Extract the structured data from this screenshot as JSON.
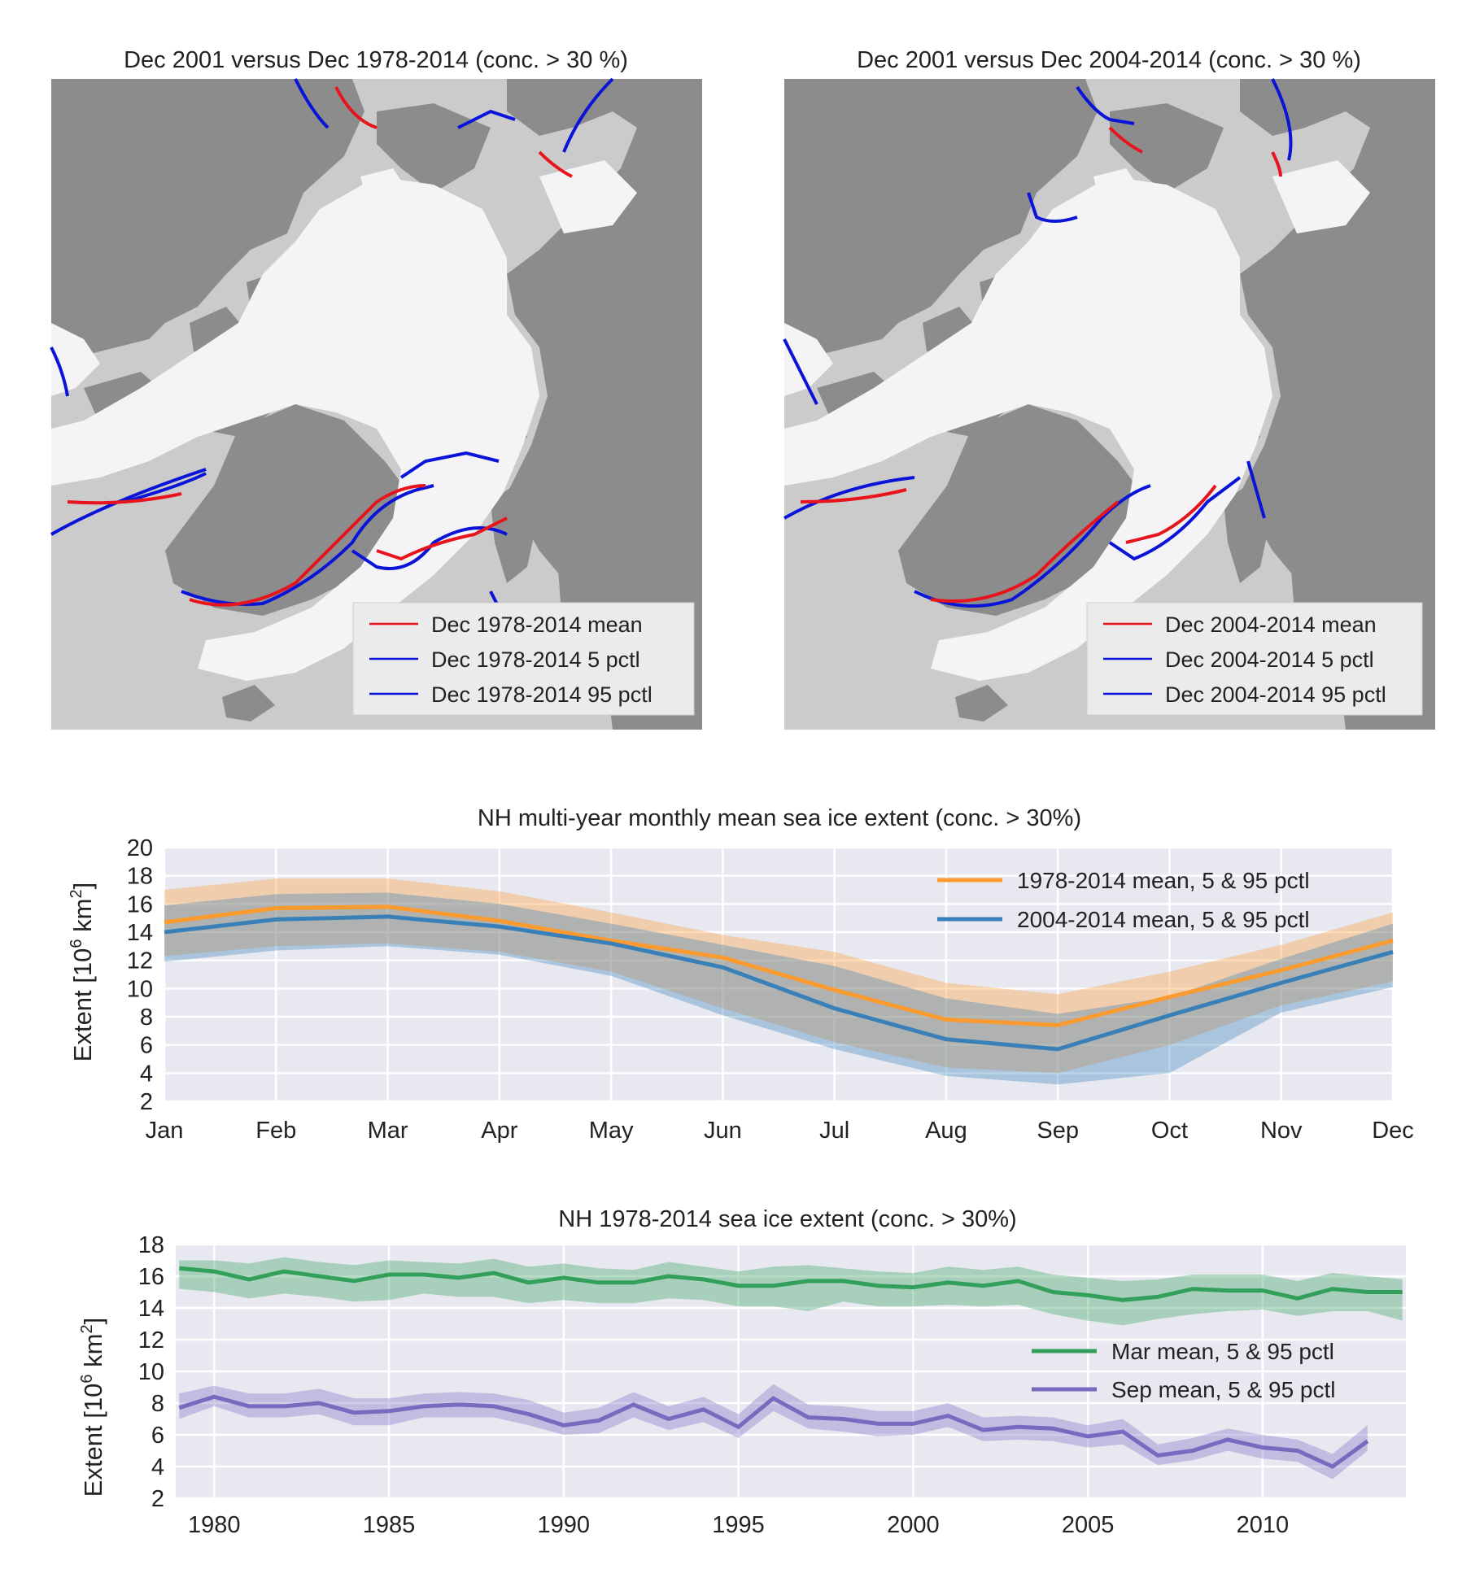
{
  "maps": [
    {
      "title": "Dec 2001 versus Dec 1978-2014 (conc. > 30 %)",
      "legend": [
        "Dec 1978-2014 mean",
        "Dec 1978-2014 5 pctl",
        "Dec 1978-2014 95 pctl"
      ]
    },
    {
      "title": "Dec 2001 versus Dec 2004-2014 (conc. > 30 %)",
      "legend": [
        "Dec 2004-2014 mean",
        "Dec 2004-2014 5 pctl",
        "Dec 2004-2014 95 pctl"
      ]
    }
  ],
  "colors": {
    "land": "#8c8c8c",
    "ocean": "#cbcbcb",
    "ice": "#f4f4f6",
    "mean_line": "#e8141c",
    "pctl_line": "#0a14d8",
    "plot_bg": "#e8e8f1",
    "orange": "#fb9a2f",
    "blue": "#3a80b8",
    "green": "#32a05a",
    "purple": "#7a6abf"
  },
  "chart_data": [
    {
      "type": "line",
      "title": "NH multi-year monthly mean sea ice extent (conc. > 30%)",
      "ylabel": "Extent [10⁶ km²]",
      "ylabel_main": "Extent",
      "ylabel_pre": "[10",
      "ylabel_exp1": "6",
      "ylabel_mid": "km",
      "ylabel_exp2": "2",
      "ylabel_post": "]",
      "categories": [
        "Jan",
        "Feb",
        "Mar",
        "Apr",
        "May",
        "Jun",
        "Jul",
        "Aug",
        "Sep",
        "Oct",
        "Nov",
        "Dec"
      ],
      "ylim": [
        2,
        20
      ],
      "yticks": [
        2,
        4,
        6,
        8,
        10,
        12,
        14,
        16,
        18,
        20
      ],
      "grid": true,
      "legend_position": "top-right",
      "series": [
        {
          "name": "1978-2014 mean, 5 & 95 pctl",
          "color": "#fb9a2f",
          "mean": [
            14.7,
            15.7,
            15.8,
            14.8,
            13.4,
            12.2,
            9.9,
            7.8,
            7.4,
            9.4,
            11.3,
            13.4
          ],
          "p5": [
            12.3,
            13.0,
            13.2,
            12.6,
            11.2,
            8.6,
            6.2,
            4.4,
            4.0,
            6.0,
            8.8,
            10.5
          ],
          "p95": [
            17.0,
            17.8,
            17.8,
            16.9,
            15.4,
            13.8,
            12.6,
            10.4,
            9.6,
            11.2,
            13.1,
            15.4
          ]
        },
        {
          "name": "2004-2014 mean, 5 & 95 pctl",
          "color": "#3a80b8",
          "mean": [
            14.0,
            14.9,
            15.1,
            14.4,
            13.2,
            11.5,
            8.6,
            6.4,
            5.7,
            8.1,
            10.4,
            12.6
          ],
          "p5": [
            11.9,
            12.7,
            13.0,
            12.4,
            10.9,
            8.1,
            5.7,
            3.8,
            3.2,
            4.0,
            8.3,
            10.1
          ],
          "p95": [
            15.9,
            16.7,
            16.8,
            16.0,
            14.6,
            13.1,
            11.6,
            9.3,
            8.2,
            9.4,
            12.1,
            14.6
          ]
        }
      ]
    },
    {
      "type": "line",
      "title": "NH 1978-2014 sea ice extent (conc. > 30%)",
      "ylabel": "Extent [10⁶ km²]",
      "ylabel_main": "Extent",
      "ylabel_pre": "[10",
      "ylabel_exp1": "6",
      "ylabel_mid": "km",
      "ylabel_exp2": "2",
      "ylabel_post": "]",
      "xlim": [
        1978.9,
        2014.1
      ],
      "xticks": [
        1980,
        1985,
        1990,
        1995,
        2000,
        2005,
        2010
      ],
      "ylim": [
        2,
        18
      ],
      "yticks": [
        2,
        4,
        6,
        8,
        10,
        12,
        14,
        16,
        18
      ],
      "grid": true,
      "legend_position": "center-right",
      "x": [
        1979,
        1980,
        1981,
        1982,
        1983,
        1984,
        1985,
        1986,
        1987,
        1988,
        1989,
        1990,
        1991,
        1992,
        1993,
        1994,
        1995,
        1996,
        1997,
        1998,
        1999,
        2000,
        2001,
        2002,
        2003,
        2004,
        2005,
        2006,
        2007,
        2008,
        2009,
        2010,
        2011,
        2012,
        2013,
        2014
      ],
      "series": [
        {
          "name": "Mar mean, 5 & 95 pctl",
          "color": "#32a05a",
          "mean": [
            16.5,
            16.3,
            15.8,
            16.3,
            16.0,
            15.7,
            16.1,
            16.1,
            15.9,
            16.2,
            15.6,
            15.9,
            15.6,
            15.6,
            16.0,
            15.8,
            15.4,
            15.4,
            15.7,
            15.7,
            15.4,
            15.3,
            15.6,
            15.4,
            15.7,
            15.0,
            14.8,
            14.5,
            14.7,
            15.2,
            15.1,
            15.1,
            14.6,
            15.2,
            15.0,
            15.0
          ],
          "p5": [
            15.2,
            15.0,
            14.6,
            14.9,
            14.7,
            14.4,
            14.5,
            14.9,
            14.7,
            14.7,
            14.3,
            14.5,
            14.3,
            14.3,
            14.6,
            14.5,
            14.1,
            14.1,
            13.8,
            14.4,
            14.1,
            14.1,
            14.2,
            14.1,
            14.2,
            13.6,
            13.2,
            12.9,
            13.3,
            13.6,
            13.8,
            13.9,
            13.5,
            13.8,
            13.8,
            13.2
          ],
          "p95": [
            17.0,
            17.0,
            16.8,
            17.2,
            16.9,
            16.7,
            17.0,
            16.9,
            16.8,
            17.1,
            16.6,
            16.8,
            16.5,
            16.4,
            16.9,
            16.6,
            16.3,
            16.6,
            16.7,
            16.5,
            16.3,
            16.2,
            16.6,
            16.4,
            16.6,
            16.1,
            15.9,
            15.7,
            15.8,
            16.1,
            16.1,
            16.1,
            15.7,
            16.2,
            16.0,
            15.8
          ]
        },
        {
          "name": "Sep mean, 5 & 95 pctl",
          "color": "#7a6abf",
          "mean": [
            7.7,
            8.4,
            7.8,
            7.8,
            8.0,
            7.4,
            7.5,
            7.8,
            7.9,
            7.8,
            7.3,
            6.6,
            6.9,
            7.9,
            7.0,
            7.6,
            6.5,
            8.3,
            7.1,
            7.0,
            6.7,
            6.7,
            7.2,
            6.3,
            6.5,
            6.4,
            5.9,
            6.2,
            4.7,
            5.0,
            5.7,
            5.2,
            5.0,
            4.0,
            5.6,
            null
          ],
          "p5": [
            7.0,
            7.8,
            7.1,
            7.1,
            7.3,
            6.6,
            6.6,
            7.1,
            7.1,
            7.1,
            6.6,
            6.0,
            6.1,
            7.1,
            6.3,
            6.8,
            5.8,
            7.5,
            6.4,
            6.2,
            5.9,
            6.0,
            6.5,
            5.6,
            5.7,
            5.6,
            5.2,
            5.4,
            4.1,
            4.4,
            5.0,
            4.5,
            4.3,
            3.2,
            5.0,
            null
          ],
          "p95": [
            8.6,
            9.1,
            8.6,
            8.6,
            8.9,
            8.3,
            8.3,
            8.6,
            8.7,
            8.6,
            8.2,
            7.4,
            7.7,
            8.7,
            7.8,
            8.4,
            7.3,
            9.2,
            7.9,
            7.8,
            7.5,
            7.5,
            8.0,
            7.1,
            7.2,
            7.1,
            6.6,
            7.0,
            5.4,
            5.8,
            6.4,
            6.0,
            5.7,
            4.8,
            6.6,
            null
          ]
        }
      ]
    }
  ]
}
